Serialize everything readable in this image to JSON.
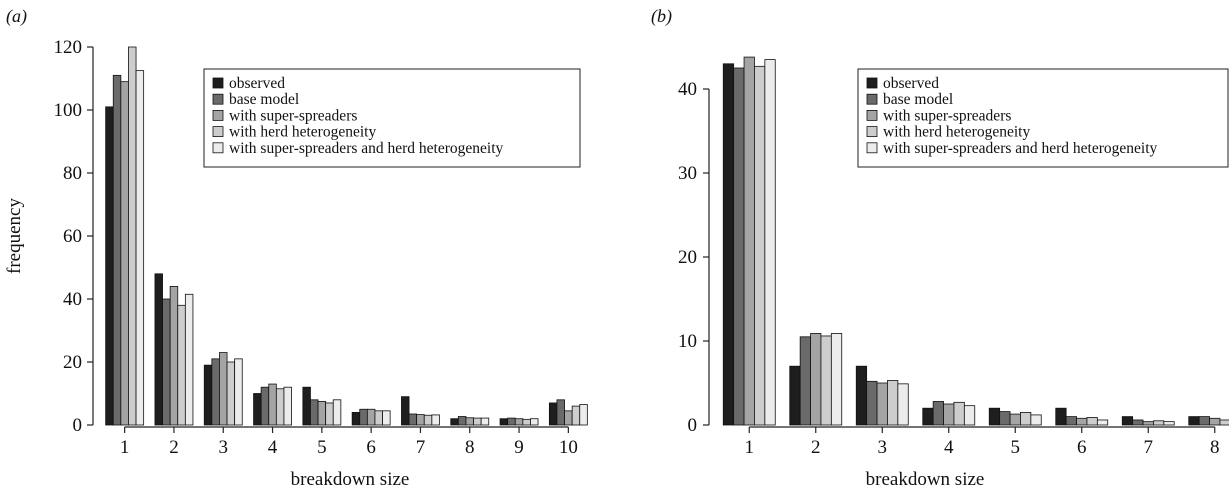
{
  "chart_data": [
    {
      "panel_label": "(a)",
      "type": "bar",
      "xlabel": "breakdown size",
      "ylabel": "frequency",
      "ylim": [
        0,
        120
      ],
      "yticks": [
        0,
        20,
        40,
        60,
        80,
        100,
        120
      ],
      "categories": [
        "1",
        "2",
        "3",
        "4",
        "5",
        "6",
        "7",
        "8",
        "9",
        "10"
      ],
      "legend": "top-right",
      "series": [
        {
          "name": "observed",
          "color": "#1e1e1e",
          "values": [
            101,
            48,
            19,
            10,
            12,
            4,
            9,
            2,
            2,
            7
          ]
        },
        {
          "name": "base model",
          "color": "#6a6a6a",
          "values": [
            111,
            40,
            21,
            12,
            8,
            5,
            3.5,
            2.7,
            2.2,
            8
          ]
        },
        {
          "name": "with super-spreaders",
          "color": "#a4a4a4",
          "values": [
            109,
            44,
            23,
            13,
            7.5,
            5,
            3.3,
            2.3,
            2.0,
            4.5
          ]
        },
        {
          "name": "with herd heterogeneity",
          "color": "#cdcdcd",
          "values": [
            120,
            38,
            20,
            11.5,
            7,
            4.5,
            3.1,
            2.2,
            1.8,
            6
          ]
        },
        {
          "name": "with super-spreaders and herd heterogeneity",
          "color": "#ececec",
          "values": [
            112.5,
            41.5,
            21,
            12,
            8,
            4.5,
            3.2,
            2.2,
            2.0,
            6.5
          ]
        }
      ]
    },
    {
      "panel_label": "(b)",
      "type": "bar",
      "xlabel": "breakdown size",
      "ylabel": "",
      "ylim": [
        0,
        45
      ],
      "yticks": [
        0,
        10,
        20,
        30,
        40
      ],
      "categories": [
        "1",
        "2",
        "3",
        "4",
        "5",
        "6",
        "7",
        "8"
      ],
      "legend": "top-right",
      "series": [
        {
          "name": "observed",
          "color": "#1e1e1e",
          "values": [
            43,
            7,
            7,
            2,
            2,
            2,
            1,
            1
          ]
        },
        {
          "name": "base model",
          "color": "#6a6a6a",
          "values": [
            42.5,
            10.5,
            5.2,
            2.8,
            1.6,
            1.0,
            0.6,
            1.0
          ]
        },
        {
          "name": "with super-spreaders",
          "color": "#a4a4a4",
          "values": [
            43.8,
            10.9,
            5.0,
            2.5,
            1.3,
            0.8,
            0.4,
            0.8
          ]
        },
        {
          "name": "with herd heterogeneity",
          "color": "#cdcdcd",
          "values": [
            42.7,
            10.6,
            5.3,
            2.7,
            1.5,
            0.9,
            0.5,
            0.6
          ]
        },
        {
          "name": "with super-spreaders and herd heterogeneity",
          "color": "#ececec",
          "values": [
            43.5,
            10.9,
            4.9,
            2.3,
            1.2,
            0.6,
            0.4,
            1.0
          ]
        }
      ]
    }
  ]
}
